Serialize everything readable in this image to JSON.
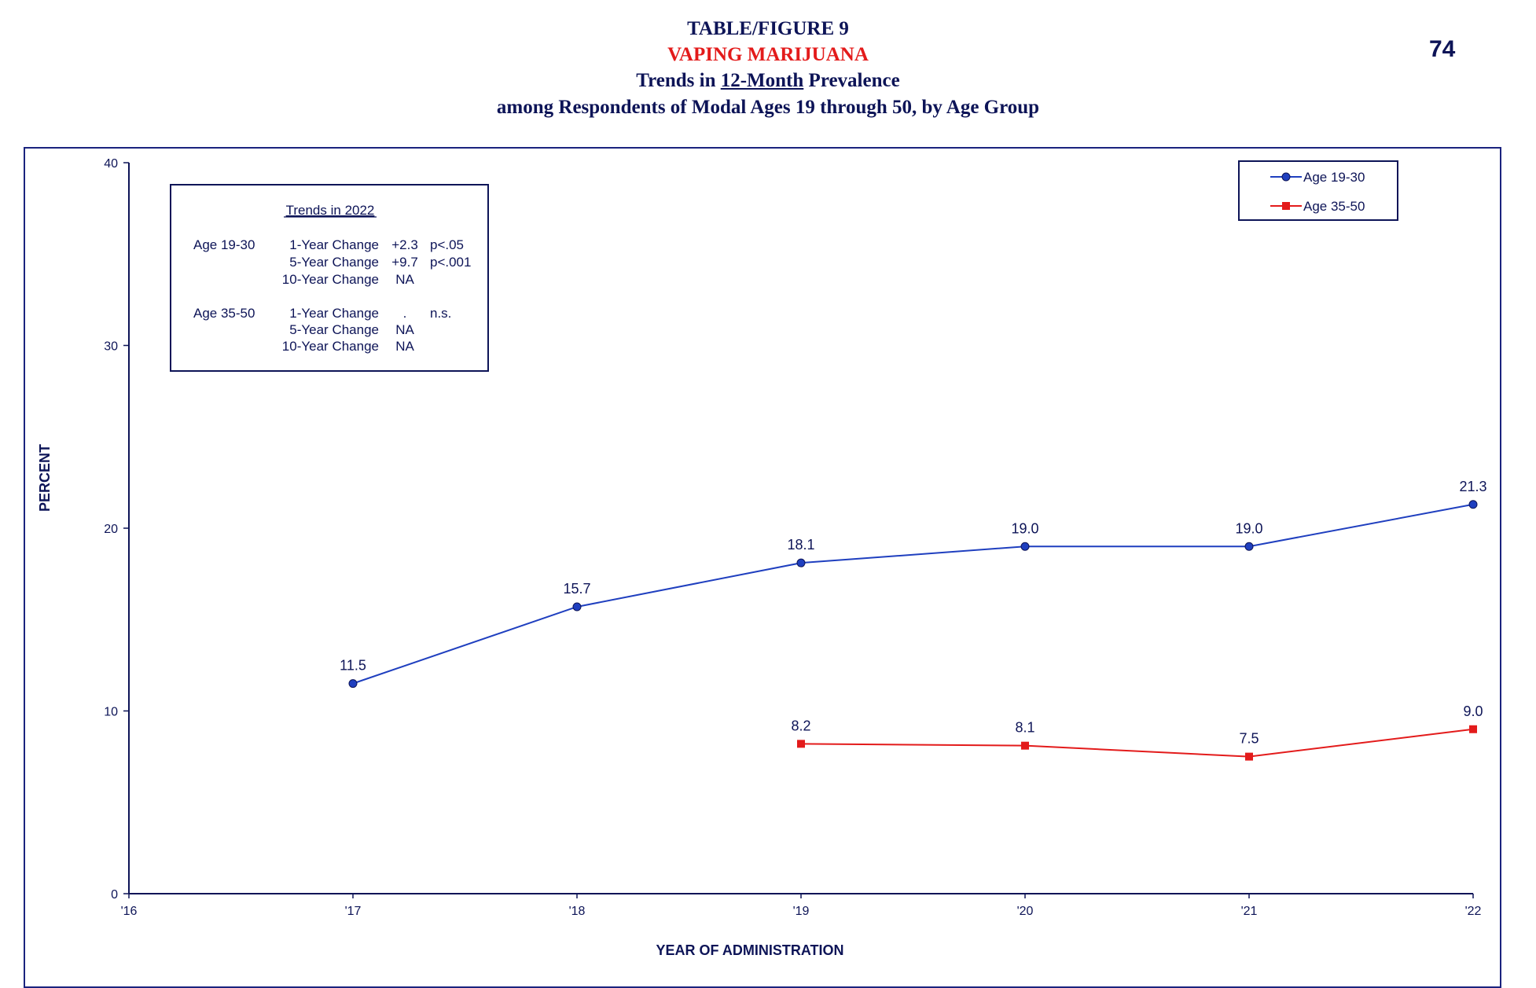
{
  "page_number": "74",
  "header": {
    "line1": "TABLE/FIGURE 9",
    "line2": "VAPING MARIJUANA",
    "line3_pre": "Trends in ",
    "line3_u": "12-Month",
    "line3_post": " Prevalence",
    "line4": "among Respondents of Modal Ages 19 through 50, by Age Group"
  },
  "trends_box": {
    "title": "Trends in 2022",
    "groups": [
      {
        "label": "Age 19-30",
        "rows": [
          {
            "change": "1-Year Change",
            "value": "+2.3",
            "sig": "p<.05"
          },
          {
            "change": "5-Year Change",
            "value": "+9.7",
            "sig": "p<.001"
          },
          {
            "change": "10-Year Change",
            "value": "NA",
            "sig": ""
          }
        ]
      },
      {
        "label": "Age 35-50",
        "rows": [
          {
            "change": "1-Year Change",
            "value": ".",
            "sig": "n.s."
          },
          {
            "change": "5-Year Change",
            "value": "NA",
            "sig": ""
          },
          {
            "change": "10-Year Change",
            "value": "NA",
            "sig": ""
          }
        ]
      }
    ]
  },
  "chart_data": {
    "type": "line",
    "xlabel": "YEAR OF ADMINISTRATION",
    "ylabel": "PERCENT",
    "x": [
      "'16",
      "'17",
      "'18",
      "'19",
      "'20",
      "'21",
      "'22"
    ],
    "ylim": [
      0,
      40
    ],
    "yticks": [
      0,
      10,
      20,
      30,
      40
    ],
    "grid": false,
    "legend_position": "top-right",
    "series": [
      {
        "name": "Age 19-30",
        "color": "#1f3fbf",
        "marker": "circle",
        "values": [
          null,
          11.5,
          15.7,
          18.1,
          19.0,
          19.0,
          21.3
        ],
        "labels": [
          "",
          "11.5",
          "15.7",
          "18.1",
          "19.0",
          "19.0",
          "21.3"
        ]
      },
      {
        "name": "Age 35-50",
        "color": "#e31b1b",
        "marker": "square",
        "values": [
          null,
          null,
          null,
          8.2,
          8.1,
          7.5,
          9.0
        ],
        "labels": [
          "",
          "",
          "",
          "8.2",
          "8.1",
          "7.5",
          "9.0"
        ]
      }
    ]
  }
}
